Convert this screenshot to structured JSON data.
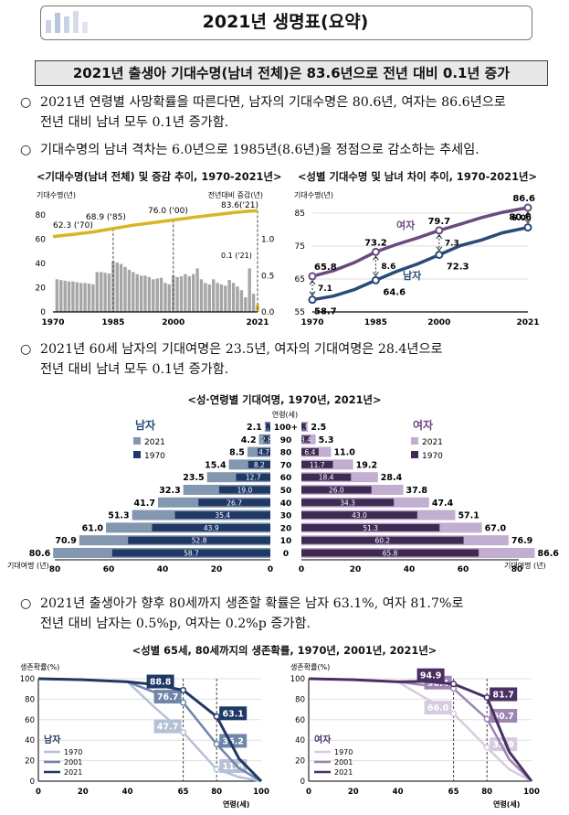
{
  "title": "2021년 생명표(요약)",
  "headline": "2021년 출생아 기대수명(남녀 전체)은 83.6년으로 전년 대비 0.1년 증가",
  "bullets": [
    {
      "l1": "2021년 연령별 사망확률을 따른다면, 남자의 기대수명은 80.6년, 여자는 86.6년으로",
      "l2": "전년 대비 남녀 모두 0.1년 증가함."
    },
    {
      "l1": "기대수명의 남녀 격차는 6.0년으로 1985년(8.6년)을 정점으로 감소하는 추세임.",
      "l2": ""
    },
    {
      "l1": "2021년 60세 남자의 기대여명은 23.5년, 여자의 기대여명은 28.4년으로",
      "l2": "전년 대비 남녀 모두 0.1년 증가함."
    },
    {
      "l1": "2021년 출생아가 향후 80세까지 생존할 확률은 남자 63.1%, 여자 81.7%로",
      "l2": "전년 대비 남자는 0.5%p, 여자는 0.2%p 증가함."
    }
  ],
  "bullet_mark": "○",
  "colors": {
    "yellow": "#d9b526",
    "gray": "#a6a6a6",
    "male": "#2a4a78",
    "female": "#6b4a80",
    "male_dark": "#1f3864",
    "female_dark": "#3f2a52"
  },
  "chart_data": [
    {
      "type": "line",
      "title": "<기대수명(남녀 전체) 및 증감 추이, 1970-2021년>",
      "ylabel_left": "기대수명(년)",
      "ylabel_right": "전년대비 증감(년)",
      "ylim": [
        0,
        90
      ],
      "y2lim": [
        0,
        1.5
      ],
      "yticks": [
        "0",
        "20",
        "40",
        "60",
        "80"
      ],
      "y2ticks": [
        "0.0",
        "0.5",
        "1.0"
      ],
      "xticks": [
        "1970",
        "1985",
        "2000",
        "2021"
      ],
      "annotations": [
        "62.3 ('70)",
        "68.9 ('85)",
        "76.0 ('00)",
        "83.6('21)",
        "0.1 ('21)"
      ],
      "line": {
        "x": [
          1970,
          1975,
          1980,
          1985,
          1990,
          1995,
          2000,
          2005,
          2010,
          2015,
          2019,
          2020,
          2021
        ],
        "values": [
          62.3,
          64.1,
          66.1,
          68.9,
          71.7,
          73.8,
          76.0,
          78.2,
          80.2,
          82.1,
          83.3,
          83.5,
          83.6
        ]
      },
      "bars": {
        "x": [
          1971,
          1972,
          1973,
          1974,
          1975,
          1976,
          1977,
          1978,
          1979,
          1980,
          1981,
          1982,
          1983,
          1984,
          1985,
          1986,
          1987,
          1988,
          1989,
          1990,
          1991,
          1992,
          1993,
          1994,
          1995,
          1996,
          1997,
          1998,
          1999,
          2000,
          2001,
          2002,
          2003,
          2004,
          2005,
          2006,
          2007,
          2008,
          2009,
          2010,
          2011,
          2012,
          2013,
          2014,
          2015,
          2016,
          2017,
          2018,
          2019,
          2020,
          2021
        ],
        "values": [
          0.45,
          0.44,
          0.43,
          0.42,
          0.42,
          0.41,
          0.4,
          0.4,
          0.39,
          0.38,
          0.55,
          0.55,
          0.54,
          0.53,
          0.7,
          0.68,
          0.66,
          0.62,
          0.58,
          0.55,
          0.52,
          0.5,
          0.5,
          0.48,
          0.45,
          0.46,
          0.47,
          0.4,
          0.38,
          0.5,
          0.48,
          0.49,
          0.52,
          0.49,
          0.52,
          0.6,
          0.45,
          0.4,
          0.38,
          0.45,
          0.4,
          0.38,
          0.36,
          0.44,
          0.4,
          0.35,
          0.3,
          0.2,
          0.6,
          0.25,
          0.1
        ]
      }
    },
    {
      "type": "line",
      "title": "<성별 기대수명 및 남녀 차이 추이, 1970-2021년>",
      "ylabel": "기대수명(년)",
      "ylim": [
        55,
        88
      ],
      "yticks": [
        "55",
        "65",
        "75",
        "85"
      ],
      "xticks": [
        "1970",
        "1985",
        "2000",
        "2021"
      ],
      "series": [
        {
          "name": "여자",
          "x": [
            1970,
            1975,
            1980,
            1985,
            1990,
            1995,
            2000,
            2005,
            2010,
            2015,
            2021
          ],
          "values": [
            65.8,
            67.5,
            70.0,
            73.2,
            75.5,
            77.5,
            79.7,
            81.6,
            83.6,
            85.2,
            86.6
          ]
        },
        {
          "name": "남자",
          "x": [
            1970,
            1975,
            1980,
            1985,
            1990,
            1995,
            2000,
            2005,
            2010,
            2015,
            2021
          ],
          "values": [
            58.7,
            59.8,
            61.8,
            64.6,
            67.3,
            69.6,
            72.3,
            75.1,
            76.8,
            79.0,
            80.6
          ]
        }
      ],
      "point_labels": {
        "female": [
          "65.8",
          "73.2",
          "79.7",
          "86.6"
        ],
        "male": [
          "58.7",
          "64.6",
          "72.3",
          "80.6"
        ]
      },
      "gap_labels": [
        "7.1",
        "8.6",
        "7.3",
        "6.0"
      ]
    },
    {
      "type": "bar",
      "title": "<성·연령별 기대여명, 1970년, 2021년>",
      "age_header": "연령(세)",
      "xlabel": "기대여명 (년)",
      "ages": [
        "100+",
        "90",
        "80",
        "70",
        "60",
        "50",
        "40",
        "30",
        "20",
        "10",
        "0"
      ],
      "xticks": [
        "80",
        "60",
        "40",
        "20",
        "0",
        "0",
        "20",
        "40",
        "60",
        "80"
      ],
      "male": {
        "label": "남자",
        "legend": [
          "2021",
          "1970"
        ],
        "y2021": [
          "2.1",
          "4.2",
          "8.5",
          "15.4",
          "23.5",
          "32.3",
          "41.7",
          "51.3",
          "61.0",
          "70.9",
          "80.6"
        ],
        "y1970": [
          "1.7",
          "2.8",
          "4.7",
          "8.2",
          "12.7",
          "19.0",
          "26.7",
          "35.4",
          "43.9",
          "52.8",
          "58.7"
        ]
      },
      "female": {
        "label": "여자",
        "legend": [
          "2021",
          "1970"
        ],
        "y2021": [
          "2.5",
          "5.3",
          "11.0",
          "19.2",
          "28.4",
          "37.8",
          "47.4",
          "57.1",
          "67.0",
          "76.9",
          "86.6"
        ],
        "y1970": [
          "1.9",
          "3.4",
          "6.4",
          "11.7",
          "18.4",
          "26.0",
          "34.3",
          "43.0",
          "51.3",
          "60.2",
          "65.8"
        ]
      }
    },
    {
      "type": "line",
      "title": "<성별 65세, 80세까지의 생존확률, 1970년, 2001년, 2021년>",
      "ylabel": "생존확률(%)",
      "xlabel": "연령(세)",
      "yticks": [
        "0",
        "20",
        "40",
        "60",
        "80",
        "100"
      ],
      "xticks": [
        "0",
        "20",
        "40",
        "65",
        "80",
        "100"
      ],
      "panels": [
        {
          "label": "남자",
          "legend": [
            "1970",
            "2001",
            "2021"
          ],
          "p65": [
            "47.7",
            "76.7",
            "88.8"
          ],
          "p80": [
            "11.6",
            "36.2",
            "63.1"
          ]
        },
        {
          "label": "여자",
          "legend": [
            "1970",
            "2001",
            "2021"
          ],
          "p65": [
            "66.0",
            "90.4",
            "94.9"
          ],
          "p80": [
            "32.9",
            "60.7",
            "81.7"
          ]
        }
      ]
    }
  ]
}
